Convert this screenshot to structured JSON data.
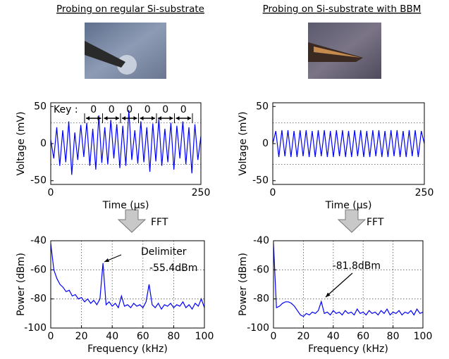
{
  "headings": [
    "Probing on regular Si-substrate",
    "Probing on Si-substrate with BBM"
  ],
  "fft_labels": [
    "FFT",
    "FFT"
  ],
  "chart_data": [
    {
      "type": "line",
      "xlabel": "Time (µs)",
      "ylabel": "Voltage (mV)",
      "color": "#0000ff",
      "xlim": [
        0,
        250
      ],
      "xticks": [
        0,
        250
      ],
      "ylim": [
        -55,
        55
      ],
      "yticks": [
        50,
        0,
        -50
      ],
      "hlines": [
        28,
        -28
      ],
      "grid": false,
      "key_label": "Key :",
      "key_bits": [
        "0",
        "0",
        "0",
        "0",
        "0",
        "0"
      ],
      "x": [
        0,
        5,
        10,
        15,
        20,
        25,
        30,
        35,
        40,
        45,
        50,
        55,
        60,
        65,
        70,
        75,
        80,
        85,
        90,
        95,
        100,
        105,
        110,
        115,
        120,
        125,
        130,
        135,
        140,
        145,
        150,
        155,
        160,
        165,
        170,
        175,
        180,
        185,
        190,
        195,
        200,
        205,
        210,
        215,
        220,
        225,
        230,
        235,
        240,
        245,
        250
      ],
      "values": [
        5,
        -20,
        22,
        -30,
        18,
        -25,
        30,
        -42,
        15,
        -22,
        25,
        -18,
        28,
        -30,
        20,
        -35,
        38,
        -26,
        22,
        -28,
        32,
        -20,
        26,
        -33,
        24,
        -30,
        45,
        -22,
        18,
        -27,
        30,
        -25,
        22,
        -38,
        27,
        -24,
        33,
        -30,
        20,
        -25,
        28,
        -35,
        24,
        -20,
        30,
        -28,
        22,
        -40,
        26,
        -22,
        10
      ]
    },
    {
      "type": "line",
      "xlabel": "Time (µs)",
      "ylabel": "Voltage (mV)",
      "color": "#0000ff",
      "xlim": [
        0,
        250
      ],
      "xticks": [
        0,
        250
      ],
      "ylim": [
        -55,
        55
      ],
      "yticks": [
        50,
        0,
        -50
      ],
      "hlines": [
        28,
        -28
      ],
      "grid": false,
      "x": [
        0,
        5,
        10,
        15,
        20,
        25,
        30,
        35,
        40,
        45,
        50,
        55,
        60,
        65,
        70,
        75,
        80,
        85,
        90,
        95,
        100,
        105,
        110,
        115,
        120,
        125,
        130,
        135,
        140,
        145,
        150,
        155,
        160,
        165,
        170,
        175,
        180,
        185,
        190,
        195,
        200,
        205,
        210,
        215,
        220,
        225,
        230,
        235,
        240,
        245,
        250
      ],
      "values": [
        0,
        17,
        -18,
        18,
        -17,
        18,
        -18,
        17,
        -18,
        18,
        -17,
        18,
        -18,
        17,
        -18,
        18,
        -17,
        18,
        -18,
        17,
        -18,
        18,
        -17,
        18,
        -18,
        17,
        -18,
        18,
        -17,
        18,
        -18,
        17,
        -18,
        18,
        -17,
        18,
        -18,
        17,
        -18,
        18,
        -17,
        18,
        -18,
        17,
        -18,
        18,
        -17,
        18,
        -18,
        17,
        0
      ]
    },
    {
      "type": "line",
      "xlabel": "Frequency (kHz)",
      "ylabel": "Power (dBm)",
      "color": "#0000ff",
      "xlim": [
        0,
        100
      ],
      "xticks": [
        0,
        20,
        40,
        60,
        80,
        100
      ],
      "ylim": [
        -100,
        -40
      ],
      "yticks": [
        -40,
        -60,
        -80,
        -100
      ],
      "grid": true,
      "annotations": [
        "Delimiter",
        "-55.4dBm"
      ],
      "x": [
        0,
        2,
        4,
        6,
        8,
        10,
        12,
        14,
        16,
        18,
        20,
        22,
        24,
        26,
        28,
        30,
        32,
        34,
        36,
        38,
        40,
        42,
        44,
        46,
        48,
        50,
        52,
        54,
        56,
        58,
        60,
        62,
        64,
        66,
        68,
        70,
        72,
        74,
        76,
        78,
        80,
        82,
        84,
        86,
        88,
        90,
        92,
        94,
        96,
        98,
        100
      ],
      "values": [
        -42,
        -60,
        -66,
        -70,
        -72,
        -75,
        -74,
        -78,
        -77,
        -80,
        -79,
        -82,
        -80,
        -83,
        -81,
        -84,
        -80,
        -55.4,
        -84,
        -82,
        -85,
        -83,
        -86,
        -78,
        -85,
        -84,
        -86,
        -83,
        -85,
        -84,
        -86,
        -82,
        -70,
        -84,
        -86,
        -83,
        -87,
        -84,
        -85,
        -83,
        -86,
        -84,
        -85,
        -82,
        -86,
        -84,
        -87,
        -83,
        -85,
        -80,
        -86
      ]
    },
    {
      "type": "line",
      "xlabel": "Frequency (kHz)",
      "ylabel": "Power (dBm)",
      "color": "#0000ff",
      "xlim": [
        0,
        100
      ],
      "xticks": [
        0,
        20,
        40,
        60,
        80,
        100
      ],
      "ylim": [
        -100,
        -40
      ],
      "yticks": [
        -40,
        -60,
        -80,
        -100
      ],
      "grid": true,
      "annotations": [
        "-81.8dBm"
      ],
      "x": [
        0,
        2,
        4,
        6,
        8,
        10,
        12,
        14,
        16,
        18,
        20,
        22,
        24,
        26,
        28,
        30,
        32,
        34,
        36,
        38,
        40,
        42,
        44,
        46,
        48,
        50,
        52,
        54,
        56,
        58,
        60,
        62,
        64,
        66,
        68,
        70,
        72,
        74,
        76,
        78,
        80,
        82,
        84,
        86,
        88,
        90,
        92,
        94,
        96,
        98,
        100
      ],
      "values": [
        -42,
        -86,
        -85,
        -83,
        -82,
        -82,
        -83,
        -85,
        -88,
        -91,
        -92,
        -90,
        -91,
        -89,
        -90,
        -88,
        -81.8,
        -90,
        -89,
        -91,
        -88,
        -90,
        -89,
        -91,
        -88,
        -90,
        -89,
        -91,
        -87,
        -90,
        -89,
        -91,
        -88,
        -90,
        -89,
        -91,
        -88,
        -90,
        -87,
        -91,
        -89,
        -90,
        -88,
        -91,
        -89,
        -90,
        -88,
        -91,
        -87,
        -90,
        -89
      ]
    }
  ]
}
